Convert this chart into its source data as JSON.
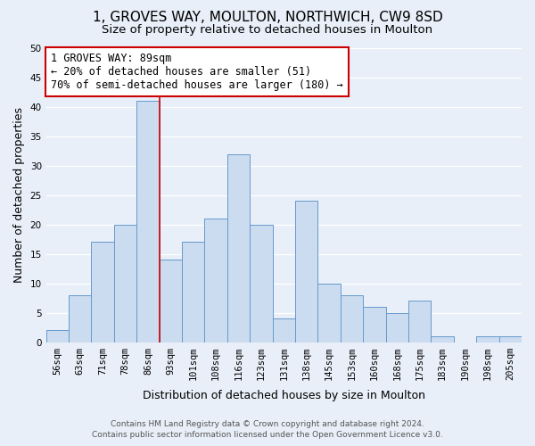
{
  "title": "1, GROVES WAY, MOULTON, NORTHWICH, CW9 8SD",
  "subtitle": "Size of property relative to detached houses in Moulton",
  "xlabel": "Distribution of detached houses by size in Moulton",
  "ylabel": "Number of detached properties",
  "bar_labels": [
    "56sqm",
    "63sqm",
    "71sqm",
    "78sqm",
    "86sqm",
    "93sqm",
    "101sqm",
    "108sqm",
    "116sqm",
    "123sqm",
    "131sqm",
    "138sqm",
    "145sqm",
    "153sqm",
    "160sqm",
    "168sqm",
    "175sqm",
    "183sqm",
    "190sqm",
    "198sqm",
    "205sqm"
  ],
  "bar_values": [
    2,
    8,
    17,
    20,
    41,
    14,
    17,
    21,
    32,
    20,
    4,
    24,
    10,
    8,
    6,
    5,
    7,
    1,
    0,
    1,
    1
  ],
  "bar_color": "#ccdcf0",
  "bar_edge_color": "#6699cc",
  "vline_color": "#cc0000",
  "vline_bar_index": 4,
  "annotation_title": "1 GROVES WAY: 89sqm",
  "annotation_line1": "← 20% of detached houses are smaller (51)",
  "annotation_line2": "70% of semi-detached houses are larger (180) →",
  "annotation_box_color": "white",
  "annotation_box_edge_color": "#cc0000",
  "ylim": [
    0,
    50
  ],
  "yticks": [
    0,
    5,
    10,
    15,
    20,
    25,
    30,
    35,
    40,
    45,
    50
  ],
  "background_color": "#e8eff8",
  "plot_bg_color": "#e8eff8",
  "footer_line1": "Contains HM Land Registry data © Crown copyright and database right 2024.",
  "footer_line2": "Contains public sector information licensed under the Open Government Licence v3.0.",
  "title_fontsize": 11,
  "subtitle_fontsize": 9.5,
  "axis_label_fontsize": 9,
  "tick_fontsize": 7.5,
  "annotation_fontsize": 8.5,
  "footer_fontsize": 6.5
}
